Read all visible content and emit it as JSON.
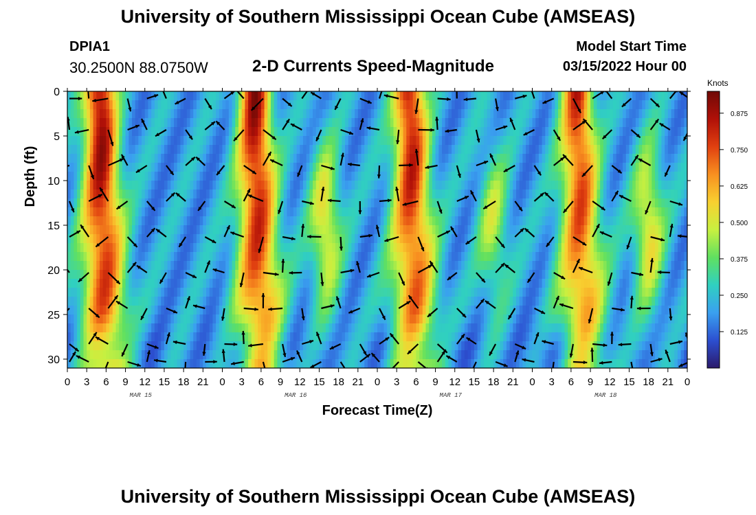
{
  "header": {
    "title": "University of Southern Mississippi Ocean Cube (AMSEAS)",
    "station_name": "DPIA1",
    "station_coords": "30.2500N  88.0750W",
    "plot_title": "2-D Currents Speed-Magnitude",
    "model_start_label": "Model Start Time",
    "model_start_value": "03/15/2022 Hour 00"
  },
  "footer": {
    "title": "University of Southern Mississippi Ocean Cube (AMSEAS)"
  },
  "colors": {
    "background": "#ffffff",
    "scale": [
      "#2b1a6b",
      "#2c4fd0",
      "#3aa0f0",
      "#30d0c0",
      "#60e060",
      "#c8f040",
      "#f8d030",
      "#f89020",
      "#e04010",
      "#b01008",
      "#700a06"
    ]
  },
  "chart_data": {
    "type": "heatmap",
    "title": "2-D Currents Speed-Magnitude",
    "xlabel": "Forecast Time(Z)",
    "ylabel": "Depth (ft)",
    "x_range_hours": [
      0,
      96
    ],
    "y_range_ft": [
      0,
      31
    ],
    "x_ticks": [
      "0",
      "3",
      "6",
      "9",
      "12",
      "15",
      "18",
      "21",
      "0",
      "3",
      "6",
      "9",
      "12",
      "15",
      "18",
      "21",
      "0",
      "3",
      "6",
      "9",
      "12",
      "15",
      "18",
      "21",
      "0",
      "3",
      "6",
      "9",
      "12",
      "15",
      "18",
      "21",
      "0"
    ],
    "y_ticks": [
      "0",
      "5",
      "10",
      "15",
      "20",
      "25",
      "30"
    ],
    "y_tick_values": [
      0,
      5,
      10,
      15,
      20,
      25,
      30
    ],
    "date_labels": [
      "MAR 15",
      "MAR 16",
      "MAR 17",
      "MAR 18"
    ],
    "date_label_hours": [
      12,
      36,
      60,
      84
    ],
    "colorbar": {
      "label": "Knots",
      "range": [
        0,
        0.95
      ],
      "ticks": [
        "0.875",
        "0.750",
        "0.625",
        "0.500",
        "0.375",
        "0.250",
        "0.125"
      ],
      "tick_values": [
        0.875,
        0.75,
        0.625,
        0.5,
        0.375,
        0.25,
        0.125
      ]
    },
    "surface_speed_peaks_knots": [
      {
        "hour": 5,
        "speed": 0.9
      },
      {
        "hour": 29,
        "speed": 0.88
      },
      {
        "hour": 53,
        "speed": 0.85
      },
      {
        "hour": 79,
        "speed": 0.8
      }
    ],
    "secondary_speed_peaks_knots": [
      {
        "hour": 40,
        "speed": 0.55
      },
      {
        "hour": 66,
        "speed": 0.45
      },
      {
        "hour": 90,
        "speed": 0.55
      }
    ],
    "vector_grid": {
      "hour_step": 3,
      "depth_levels_ft": [
        0.5,
        4,
        8,
        12,
        16,
        20,
        24,
        28,
        30
      ]
    }
  }
}
